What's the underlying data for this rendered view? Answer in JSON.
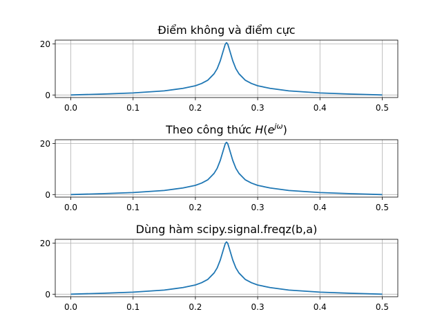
{
  "colors": {
    "line": "#1f77b4",
    "grid": "#b0b0b0",
    "background": "#ffffff"
  },
  "chart_data": [
    {
      "type": "line",
      "title_parts": [
        {
          "text": "Điểm không và điểm cực",
          "style": "normal"
        }
      ],
      "xlim": [
        -0.025,
        0.525
      ],
      "ylim": [
        -1.0,
        21.5
      ],
      "xticks": [
        0.0,
        0.1,
        0.2,
        0.3,
        0.4,
        0.5
      ],
      "xtick_labels": [
        "0.0",
        "0.1",
        "0.2",
        "0.3",
        "0.4",
        "0.5"
      ],
      "yticks": [
        0,
        20
      ],
      "ytick_labels": [
        "0",
        "20"
      ],
      "grid": true,
      "series": [
        {
          "x": [
            0.0,
            0.05,
            0.1,
            0.15,
            0.18,
            0.2,
            0.21,
            0.22,
            0.23,
            0.235,
            0.24,
            0.245,
            0.248,
            0.25,
            0.252,
            0.255,
            0.26,
            0.265,
            0.27,
            0.28,
            0.29,
            0.3,
            0.32,
            0.35,
            0.4,
            0.45,
            0.5
          ],
          "y": [
            0.0,
            0.35,
            0.8,
            1.6,
            2.6,
            3.6,
            4.5,
            5.8,
            8.3,
            10.3,
            13.4,
            17.5,
            19.9,
            20.5,
            19.9,
            17.5,
            13.4,
            10.3,
            8.3,
            5.8,
            4.5,
            3.6,
            2.6,
            1.6,
            0.8,
            0.35,
            0.0
          ]
        }
      ]
    },
    {
      "type": "line",
      "title_parts": [
        {
          "text": "Theo công thức ",
          "style": "normal"
        },
        {
          "text": "H",
          "style": "italic"
        },
        {
          "text": "(",
          "style": "normal"
        },
        {
          "text": "e",
          "style": "italic"
        },
        {
          "text": "jω",
          "style": "italic-superscript"
        },
        {
          "text": ")",
          "style": "normal"
        }
      ],
      "xlim": [
        -0.025,
        0.525
      ],
      "ylim": [
        -1.0,
        21.5
      ],
      "xticks": [
        0.0,
        0.1,
        0.2,
        0.3,
        0.4,
        0.5
      ],
      "xtick_labels": [
        "0.0",
        "0.1",
        "0.2",
        "0.3",
        "0.4",
        "0.5"
      ],
      "yticks": [
        0,
        20
      ],
      "ytick_labels": [
        "0",
        "20"
      ],
      "grid": true,
      "series": [
        {
          "x": [
            0.0,
            0.05,
            0.1,
            0.15,
            0.18,
            0.2,
            0.21,
            0.22,
            0.23,
            0.235,
            0.24,
            0.245,
            0.248,
            0.25,
            0.252,
            0.255,
            0.26,
            0.265,
            0.27,
            0.28,
            0.29,
            0.3,
            0.32,
            0.35,
            0.4,
            0.45,
            0.5
          ],
          "y": [
            0.0,
            0.35,
            0.8,
            1.6,
            2.6,
            3.6,
            4.5,
            5.8,
            8.3,
            10.3,
            13.4,
            17.5,
            19.9,
            20.5,
            19.9,
            17.5,
            13.4,
            10.3,
            8.3,
            5.8,
            4.5,
            3.6,
            2.6,
            1.6,
            0.8,
            0.35,
            0.0
          ]
        }
      ]
    },
    {
      "type": "line",
      "title_parts": [
        {
          "text": "Dùng hàm scipy.signal.freqz(b,a)",
          "style": "normal"
        }
      ],
      "xlim": [
        -0.025,
        0.525
      ],
      "ylim": [
        -1.0,
        21.5
      ],
      "xticks": [
        0.0,
        0.1,
        0.2,
        0.3,
        0.4,
        0.5
      ],
      "xtick_labels": [
        "0.0",
        "0.1",
        "0.2",
        "0.3",
        "0.4",
        "0.5"
      ],
      "yticks": [
        0,
        20
      ],
      "ytick_labels": [
        "0",
        "20"
      ],
      "grid": true,
      "series": [
        {
          "x": [
            0.0,
            0.05,
            0.1,
            0.15,
            0.18,
            0.2,
            0.21,
            0.22,
            0.23,
            0.235,
            0.24,
            0.245,
            0.248,
            0.25,
            0.252,
            0.255,
            0.26,
            0.265,
            0.27,
            0.28,
            0.29,
            0.3,
            0.32,
            0.35,
            0.4,
            0.45,
            0.5
          ],
          "y": [
            0.0,
            0.35,
            0.8,
            1.6,
            2.6,
            3.6,
            4.5,
            5.8,
            8.3,
            10.3,
            13.4,
            17.5,
            19.9,
            20.5,
            19.9,
            17.5,
            13.4,
            10.3,
            8.3,
            5.8,
            4.5,
            3.6,
            2.6,
            1.6,
            0.8,
            0.35,
            0.0
          ]
        }
      ]
    }
  ]
}
